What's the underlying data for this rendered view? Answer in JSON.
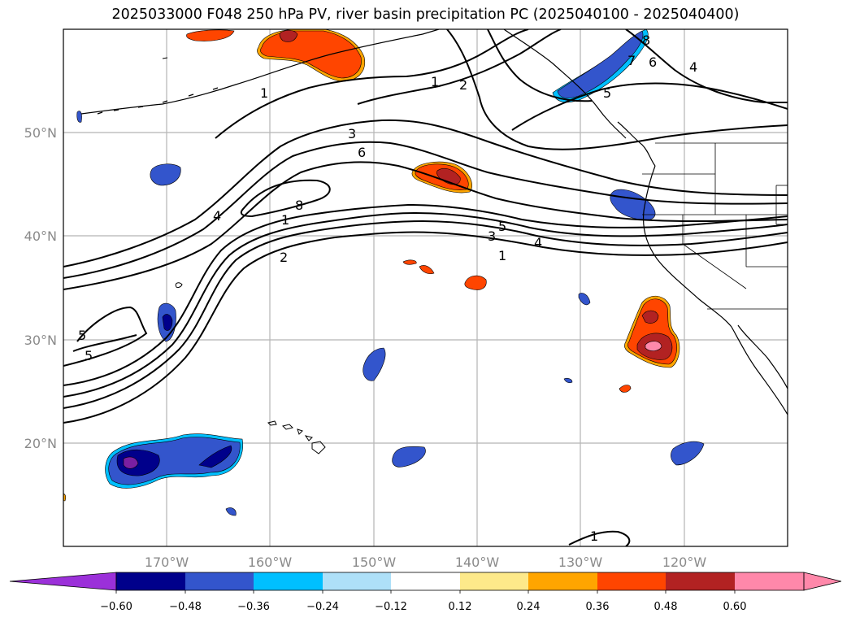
{
  "title": "2025033000 F048 250 hPa PV, river basin precipitation PC (2025040100 - 2025040400)",
  "lat_labels": [
    "50°N",
    "40°N",
    "30°N",
    "20°N"
  ],
  "lon_labels": [
    "170°W",
    "160°W",
    "150°W",
    "140°W",
    "130°W",
    "120°W"
  ],
  "pv_contour_labels": [
    "1",
    "2",
    "3",
    "6",
    "8",
    "4",
    "1",
    "2",
    "5",
    "3",
    "4",
    "1",
    "5",
    "5",
    "1",
    "8",
    "7",
    "6",
    "4",
    "5",
    "1"
  ],
  "colorbar": {
    "ticks": [
      "−0.60",
      "−0.48",
      "−0.36",
      "−0.24",
      "−0.12",
      "0.12",
      "0.24",
      "0.36",
      "0.48",
      "0.60"
    ],
    "colors": [
      "#9b30d9",
      "#00008b",
      "#3355cc",
      "#00bfff",
      "#aee0f8",
      "#ffffff",
      "#fde98a",
      "#ffa500",
      "#ff4500",
      "#b22222",
      "#ff88aa",
      "#ff88aa"
    ]
  }
}
